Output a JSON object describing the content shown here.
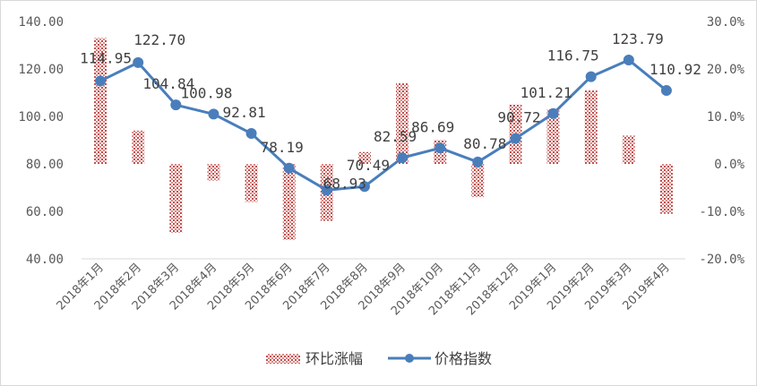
{
  "chart_data": {
    "type": "bar+line",
    "categories": [
      "2018年1月",
      "2018年2月",
      "2018年3月",
      "2018年4月",
      "2018年5月",
      "2018年6月",
      "2018年7月",
      "2018年8月",
      "2018年9月",
      "2018年10月",
      "2018年11月",
      "2018年12月",
      "2019年1月",
      "2019年2月",
      "2019年3月",
      "2019年4月"
    ],
    "series": [
      {
        "name": "环比涨幅",
        "kind": "bar",
        "axis": "right",
        "values": [
          26.5,
          7.0,
          -14.5,
          -3.5,
          -8.0,
          -16.0,
          -12.0,
          2.5,
          17.0,
          5.0,
          -7.0,
          12.5,
          11.5,
          15.5,
          6.0,
          -10.5
        ]
      },
      {
        "name": "价格指数",
        "kind": "line",
        "axis": "left",
        "values": [
          114.95,
          122.7,
          104.84,
          100.98,
          92.81,
          78.19,
          68.93,
          70.49,
          82.59,
          86.69,
          80.78,
          90.72,
          101.21,
          116.75,
          123.79,
          110.92
        ],
        "labels": [
          "114.95",
          "122.70",
          "104.84",
          "100.98",
          "92.81",
          "78.19",
          "68.93",
          "70.49",
          "82.59",
          "86.69",
          "80.78",
          "90.72",
          "101.21",
          "116.75",
          "123.79",
          "110.92"
        ]
      }
    ],
    "left_axis": {
      "ylim": [
        40,
        140
      ],
      "ticks": [
        "140.00",
        "120.00",
        "100.00",
        "80.00",
        "60.00",
        "40.00"
      ]
    },
    "right_axis": {
      "ylim": [
        -20,
        30
      ],
      "ticks": [
        "30.0%",
        "20.0%",
        "10.0%",
        "0.0%",
        "-10.0%",
        "-20.0%"
      ]
    },
    "legend_position": "bottom",
    "grid": false,
    "colors": {
      "bar": "#c0504d",
      "line": "#4a7ebb",
      "axis_text": "#595959",
      "axis_line": "#d9d9d9"
    }
  }
}
